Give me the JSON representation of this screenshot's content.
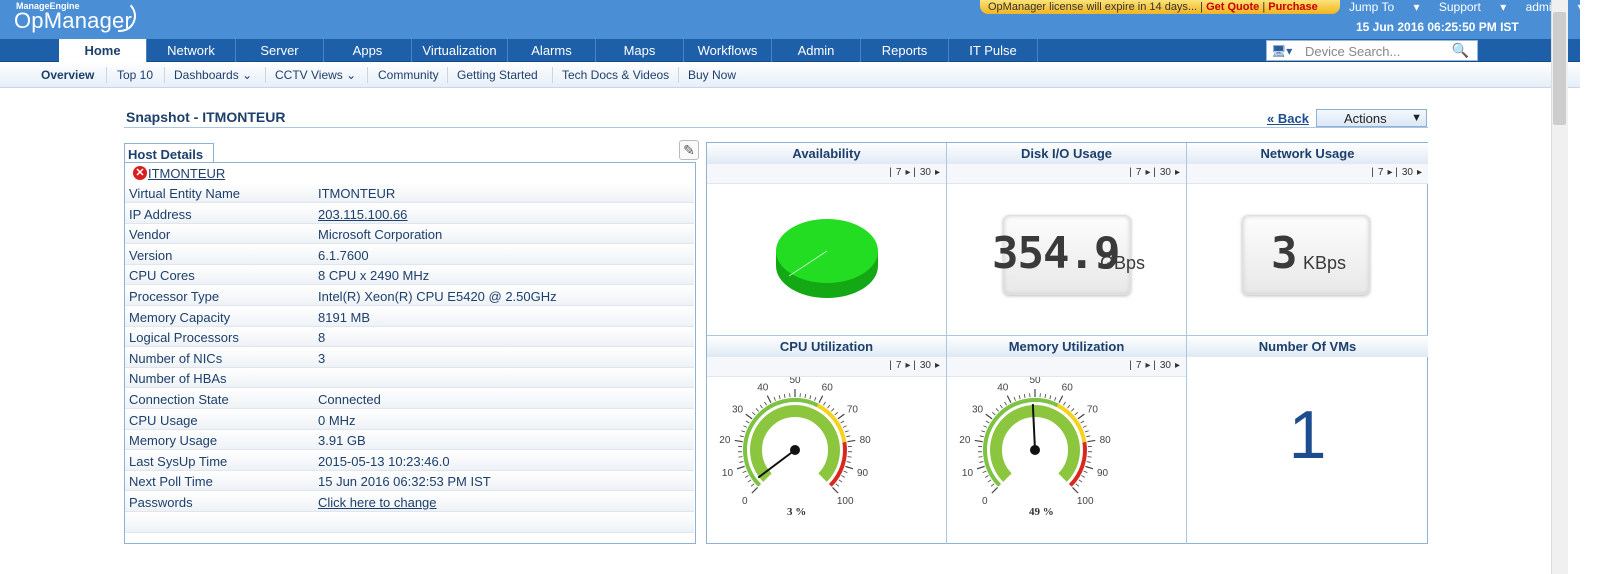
{
  "header": {
    "brand_small": "ManageEngine",
    "brand_big": "OpManager",
    "license_msg": "OpManager license will expire in 14 days...",
    "get_quote": "Get Quote",
    "purchase": "Purchase",
    "jump_to": "Jump To",
    "support": "Support",
    "user": "admin",
    "datetime": "15 Jun 2016 06:25:50 PM IST"
  },
  "nav": {
    "tabs": [
      "Home",
      "Network",
      "Server",
      "Apps",
      "Virtualization",
      "Alarms",
      "Maps",
      "Workflows",
      "Admin",
      "Reports",
      "IT Pulse"
    ],
    "search_placeholder": "Device Search..."
  },
  "subnav": {
    "items": [
      "Overview",
      "Top 10",
      "Dashboards",
      "CCTV Views",
      "Community",
      "Getting Started",
      "Tech Docs & Videos",
      "Buy Now"
    ]
  },
  "snapshot": {
    "title": "Snapshot - ITMONTEUR",
    "back": "« Back",
    "actions": "Actions"
  },
  "host": {
    "tab": "Host Details",
    "name": "ITMONTEUR",
    "status": "critical",
    "rows": [
      {
        "label": "Virtual Entity Name",
        "value": "ITMONTEUR"
      },
      {
        "label": "IP Address",
        "value": "203.115.100.66"
      },
      {
        "label": "Vendor",
        "value": "Microsoft Corporation"
      },
      {
        "label": "Version",
        "value": "6.1.7600"
      },
      {
        "label": "CPU Cores",
        "value": "8 CPU x 2490 MHz"
      },
      {
        "label": "Processor Type",
        "value": "Intel(R) Xeon(R) CPU E5420 @ 2.50GHz"
      },
      {
        "label": "Memory Capacity",
        "value": "8191 MB"
      },
      {
        "label": "Logical Processors",
        "value": "8"
      },
      {
        "label": "Number of NICs",
        "value": "3"
      },
      {
        "label": "Number of HBAs",
        "value": ""
      },
      {
        "label": "Connection State",
        "value": "Connected"
      },
      {
        "label": "CPU Usage",
        "value": "0 MHz"
      },
      {
        "label": "Memory Usage",
        "value": "3.91 GB"
      },
      {
        "label": "Last SysUp Time",
        "value": "2015-05-13 10:23:46.0"
      },
      {
        "label": "Next Poll Time",
        "value": "15 Jun 2016 06:32:53 PM IST"
      },
      {
        "label": "Passwords",
        "value": "Click here to change"
      }
    ]
  },
  "widgets": {
    "period_7": "7",
    "period_30": "30",
    "availability": {
      "title": "Availability",
      "up_percent": 100,
      "color": "#22dd22"
    },
    "disk_io": {
      "title": "Disk I/O Usage",
      "value": "354.9",
      "unit": "GBps"
    },
    "network": {
      "title": "Network Usage",
      "value": "3",
      "unit": "KBps"
    },
    "cpu": {
      "title": "CPU Utilization",
      "value": 3,
      "label": "3 %"
    },
    "memory": {
      "title": "Memory Utilization",
      "value": 49,
      "label": "49 %"
    },
    "vms": {
      "title": "Number Of VMs",
      "value": "1"
    },
    "gauge_ticks": [
      "0",
      "10",
      "20",
      "30",
      "40",
      "50",
      "60",
      "70",
      "80",
      "90",
      "100"
    ]
  }
}
